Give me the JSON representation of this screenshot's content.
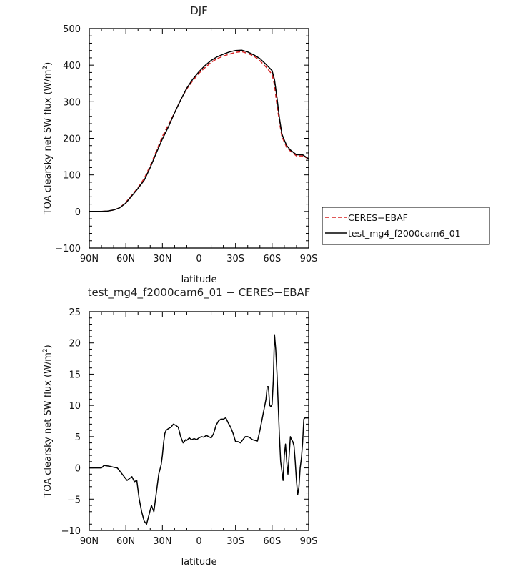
{
  "chart_data": [
    {
      "type": "line",
      "title": "DJF",
      "xlabel": "latitude",
      "ylabel_main": "TOA clearsky net SW flux (W/m",
      "ylabel_sup": "2",
      "ylabel_end": ")",
      "xlim": [
        -90,
        90
      ],
      "ylim": [
        -100,
        500
      ],
      "x_ticks": [
        -90,
        -60,
        -30,
        0,
        30,
        60,
        90
      ],
      "x_tick_labels": [
        "90N",
        "60N",
        "30N",
        "0",
        "30S",
        "60S",
        "90S"
      ],
      "y_ticks": [
        -100,
        0,
        100,
        200,
        300,
        400,
        500
      ],
      "y_tick_labels": [
        "−100",
        "0",
        "100",
        "200",
        "300",
        "400",
        "500"
      ],
      "legend_position": "right",
      "series": [
        {
          "name": "CERES−EBAF",
          "color": "#d62020",
          "dash": "dashed",
          "x": [
            -90,
            -80,
            -75,
            -70,
            -65,
            -60,
            -55,
            -50,
            -45,
            -40,
            -35,
            -30,
            -25,
            -20,
            -15,
            -10,
            -5,
            0,
            5,
            10,
            15,
            20,
            25,
            30,
            35,
            40,
            45,
            50,
            55,
            60,
            62,
            64,
            66,
            68,
            70,
            72,
            75,
            80,
            85,
            90
          ],
          "y": [
            0,
            0,
            1,
            4,
            10,
            25,
            45,
            65,
            90,
            125,
            165,
            205,
            238,
            270,
            305,
            335,
            358,
            378,
            393,
            408,
            418,
            425,
            430,
            435,
            437,
            432,
            425,
            412,
            395,
            375,
            345,
            290,
            245,
            205,
            190,
            175,
            165,
            152,
            152,
            144
          ]
        },
        {
          "name": "test_mg4_f2000cam6_01",
          "color": "#000000",
          "dash": "solid",
          "x": [
            -90,
            -80,
            -75,
            -70,
            -65,
            -60,
            -55,
            -50,
            -45,
            -40,
            -35,
            -30,
            -25,
            -20,
            -15,
            -10,
            -5,
            0,
            5,
            10,
            15,
            20,
            25,
            30,
            35,
            40,
            45,
            50,
            55,
            60,
            62,
            64,
            66,
            68,
            70,
            72,
            75,
            80,
            85,
            90
          ],
          "y": [
            0,
            0,
            1,
            4,
            10,
            23,
            43,
            63,
            85,
            120,
            160,
            198,
            232,
            270,
            305,
            337,
            362,
            382,
            399,
            413,
            423,
            430,
            436,
            440,
            441,
            436,
            428,
            418,
            402,
            385,
            360,
            310,
            255,
            212,
            195,
            180,
            168,
            155,
            155,
            144
          ]
        }
      ]
    },
    {
      "type": "line",
      "title": "test_mg4_f2000cam6_01 − CERES−EBAF",
      "xlabel": "latitude",
      "ylabel_main": "TOA clearsky net SW flux (W/m",
      "ylabel_sup": "2",
      "ylabel_end": ")",
      "xlim": [
        -90,
        90
      ],
      "ylim": [
        -10,
        25
      ],
      "x_ticks": [
        -90,
        -60,
        -30,
        0,
        30,
        60,
        90
      ],
      "x_tick_labels": [
        "90N",
        "60N",
        "30N",
        "0",
        "30S",
        "60S",
        "90S"
      ],
      "y_ticks": [
        -10,
        -5,
        0,
        5,
        10,
        15,
        20,
        25
      ],
      "y_tick_labels": [
        "−10",
        "−5",
        "0",
        "5",
        "10",
        "15",
        "20",
        "25"
      ],
      "series": [
        {
          "color": "#000000",
          "dash": "solid",
          "x": [
            -90,
            -85,
            -80,
            -78,
            -75,
            -72,
            -70,
            -67,
            -65,
            -63,
            -61,
            -59,
            -57,
            -55,
            -53,
            -51,
            -49,
            -47,
            -45,
            -43,
            -41,
            -39,
            -37,
            -35,
            -33,
            -31,
            -30,
            -29,
            -28,
            -27,
            -25,
            -23,
            -21,
            -19,
            -17,
            -15,
            -14,
            -13,
            -12,
            -11,
            -10,
            -8,
            -6,
            -4,
            -2,
            0,
            2,
            4,
            6,
            8,
            10,
            12,
            14,
            16,
            18,
            20,
            22,
            24,
            26,
            28,
            30,
            32,
            34,
            36,
            38,
            40,
            42,
            44,
            46,
            48,
            50,
            52,
            54,
            55,
            56,
            57,
            58,
            59,
            60,
            61,
            62,
            63,
            64,
            65,
            66,
            67,
            68,
            69,
            70,
            71,
            72,
            73,
            74,
            75,
            76,
            77,
            78,
            79,
            80,
            81,
            82,
            83,
            84,
            85,
            86,
            87,
            88,
            89,
            90
          ],
          "y": [
            0,
            0,
            0,
            0.4,
            0.3,
            0.2,
            0.1,
            0,
            -0.5,
            -1,
            -1.5,
            -2,
            -1.7,
            -1.4,
            -2.2,
            -2.0,
            -5,
            -7,
            -8.5,
            -9,
            -7.5,
            -6,
            -7,
            -4,
            -1,
            0.5,
            2,
            4,
            5.5,
            6,
            6.3,
            6.5,
            7,
            6.8,
            6.5,
            5,
            4.5,
            4,
            4.2,
            4.5,
            4.4,
            4.8,
            4.5,
            4.7,
            4.5,
            4.8,
            5,
            4.9,
            5.2,
            5,
            4.8,
            5.5,
            6.8,
            7.5,
            7.8,
            7.8,
            8,
            7.2,
            6.5,
            5.5,
            4.2,
            4.2,
            4.0,
            4.5,
            5.0,
            5.0,
            4.8,
            4.5,
            4.4,
            4.3,
            6,
            8,
            10,
            11,
            13,
            13,
            10,
            9.8,
            10.2,
            14,
            21.3,
            19,
            15,
            10,
            5,
            1,
            -0.5,
            -2,
            2,
            3.8,
            1,
            -1,
            2,
            5,
            4.5,
            4.2,
            3.5,
            1,
            -2,
            -4.3,
            -3,
            0,
            1.5,
            4,
            7.8,
            8,
            8,
            8,
            8
          ]
        }
      ]
    }
  ]
}
